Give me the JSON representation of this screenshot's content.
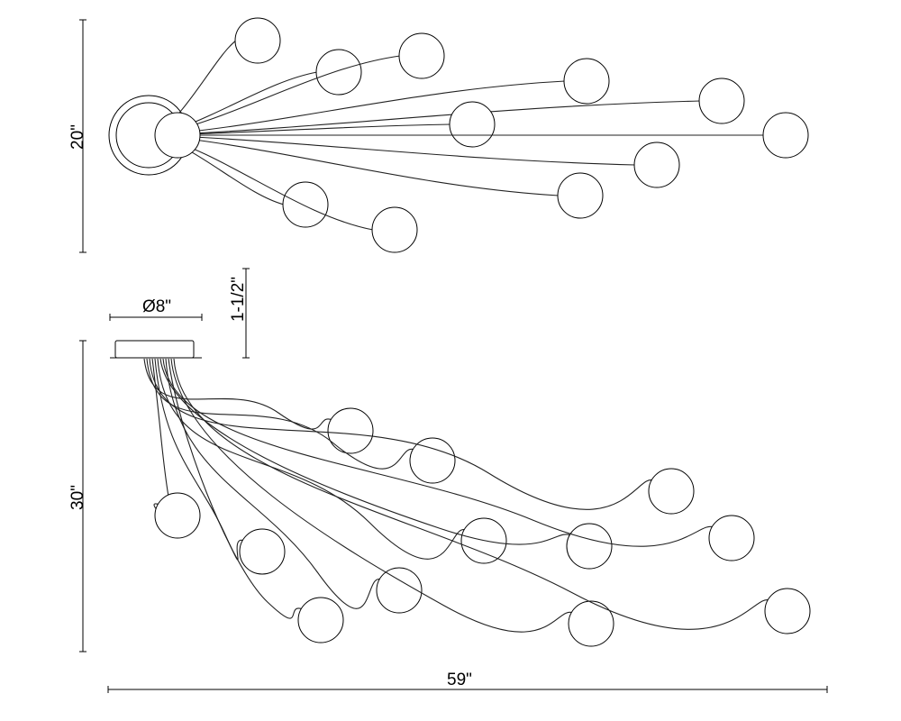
{
  "dimensions": {
    "top_view_height": "20\"",
    "canopy_diameter": "Ø8\"",
    "canopy_height": "1-1/2\"",
    "side_view_height": "30\"",
    "overall_width": "59\""
  },
  "colors": {
    "line": "#000000",
    "background": "#ffffff"
  }
}
